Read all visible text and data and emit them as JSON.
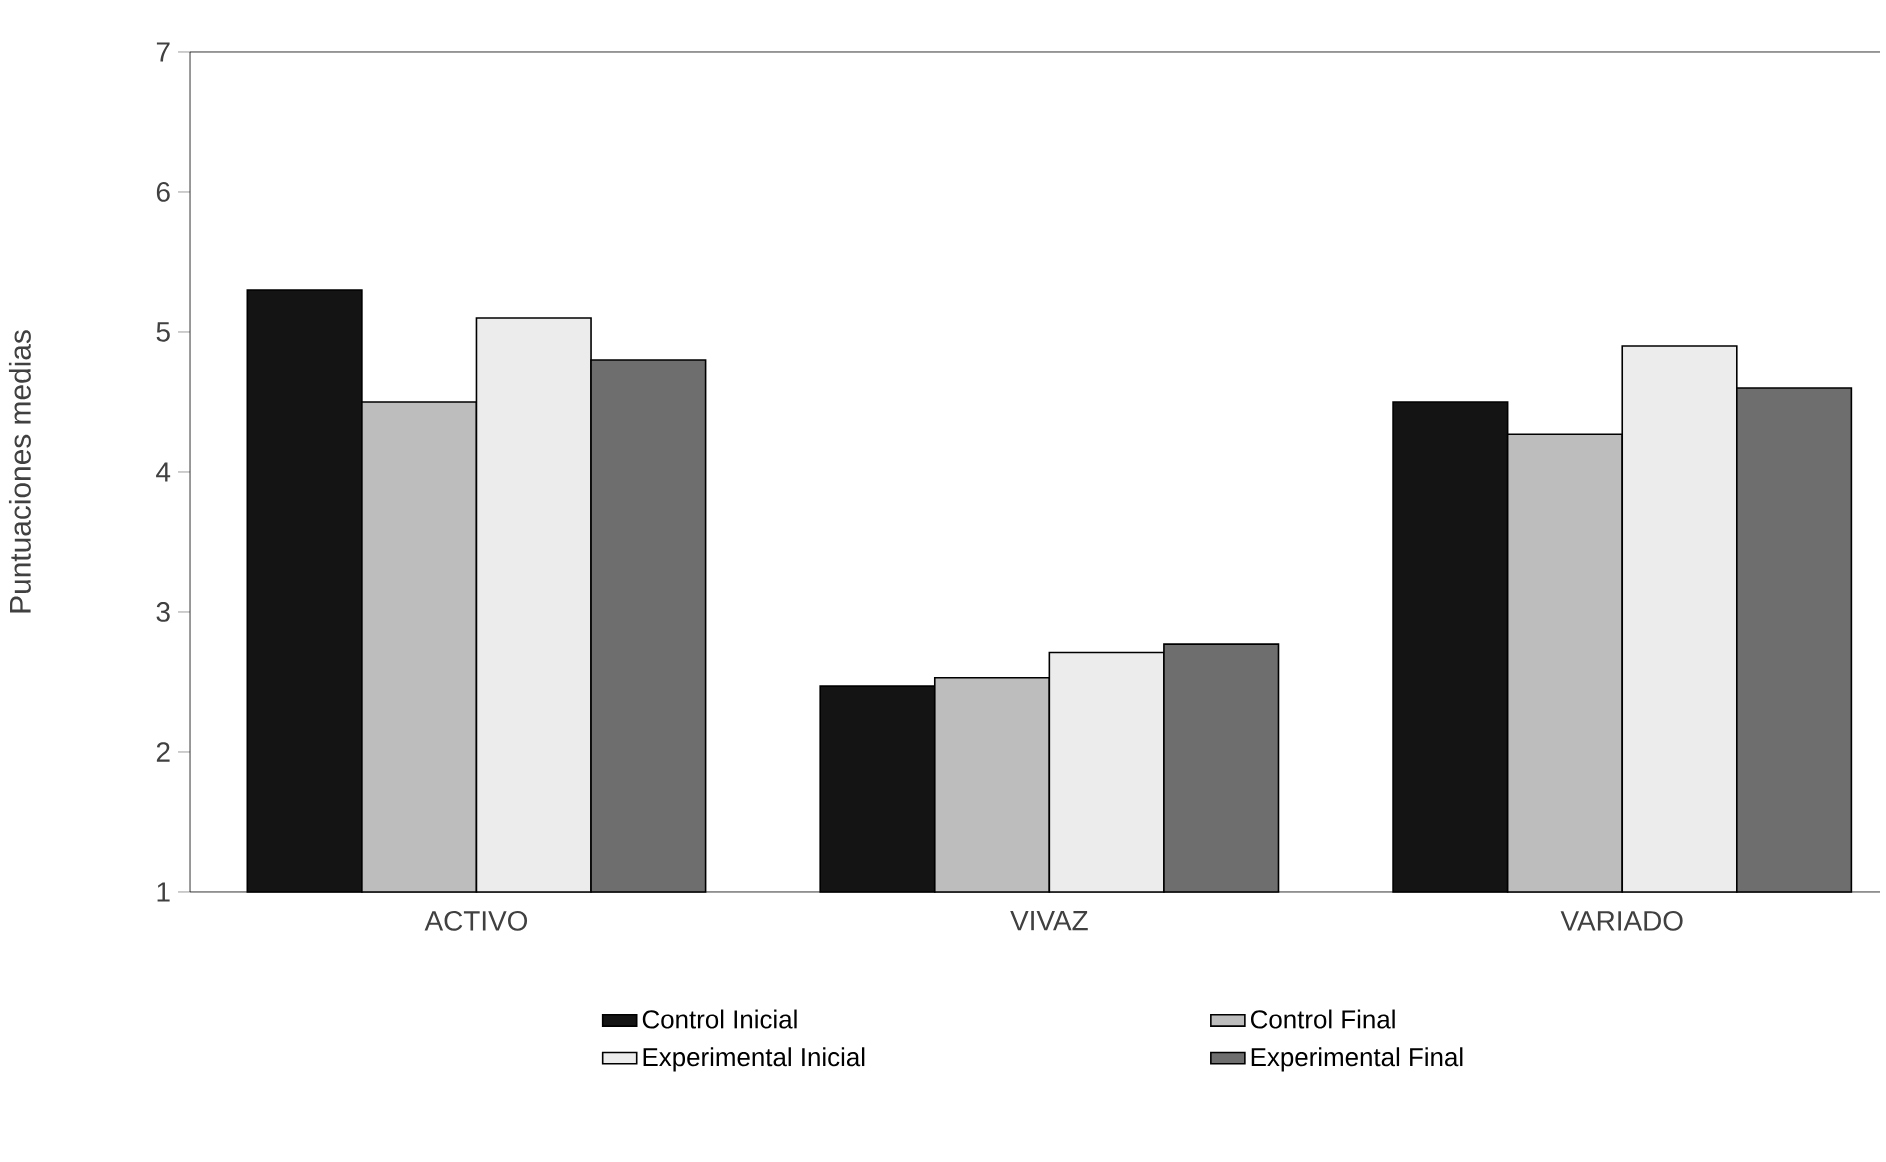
{
  "chart_data": {
    "type": "bar",
    "ylabel": "Puntuaciones medias",
    "categories": [
      "ACTIVO",
      "VIVAZ",
      "VARIADO"
    ],
    "series": [
      {
        "name": "Control Inicial",
        "color": "#141414",
        "values": [
          5.3,
          2.47,
          4.5
        ]
      },
      {
        "name": "Control Final",
        "color": "#bdbdbd",
        "values": [
          4.5,
          2.53,
          4.27
        ]
      },
      {
        "name": "Experimental Inicial",
        "color": "#ececec",
        "values": [
          5.1,
          2.71,
          4.9
        ]
      },
      {
        "name": "Experimental Final",
        "color": "#6e6e6e",
        "values": [
          4.8,
          2.77,
          4.6
        ]
      }
    ],
    "ylim": [
      1,
      7
    ],
    "yticks": [
      1,
      2,
      3,
      4,
      5,
      6,
      7
    ],
    "grid": false,
    "legend": "bottom"
  }
}
